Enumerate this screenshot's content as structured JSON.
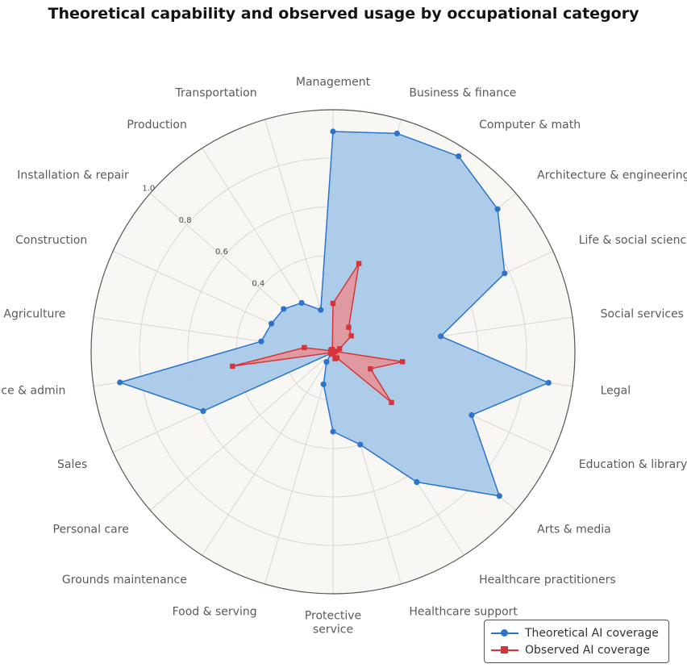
{
  "chart_data": {
    "type": "radar",
    "title": "Theoretical capability and observed usage by occupational category",
    "categories": [
      "Management",
      "Business & finance",
      "Computer & math",
      "Architecture & engineering",
      "Life & social sciences",
      "Social services",
      "Legal",
      "Education & library",
      "Arts & media",
      "Healthcare practitioners",
      "Healthcare support",
      "Protective\nservice",
      "Food & serving",
      "Grounds maintenance",
      "Personal care",
      "Sales",
      "Office & admin",
      "Agriculture",
      "Construction",
      "Installation & repair",
      "Production",
      "Transportation"
    ],
    "radial_ticks": [
      0.4,
      0.6,
      0.8,
      1.0
    ],
    "rlim": [
      0,
      1.0
    ],
    "legend_position": "bottom-right",
    "series": [
      {
        "name": "Theoretical AI coverage",
        "color": "#2b74c9",
        "fill": "#a9c9e8",
        "marker": "circle",
        "values": [
          0.91,
          0.94,
          0.96,
          0.9,
          0.78,
          0.45,
          0.9,
          0.63,
          0.91,
          0.64,
          0.4,
          0.33,
          0.14,
          0.05,
          0.01,
          0.59,
          0.89,
          0.3,
          0.28,
          0.27,
          0.24,
          0.18
        ]
      },
      {
        "name": "Observed AI coverage",
        "color": "#d6343a",
        "fill": "#e89094",
        "marker": "square",
        "values": [
          0.2,
          0.38,
          0.12,
          0.1,
          0.03,
          0.01,
          0.29,
          0.17,
          0.32,
          0.03,
          0.03,
          0.01,
          0.01,
          0.01,
          0.01,
          0.01,
          0.42,
          0.12,
          0.01,
          0.01,
          0.01,
          0.01
        ]
      }
    ]
  }
}
